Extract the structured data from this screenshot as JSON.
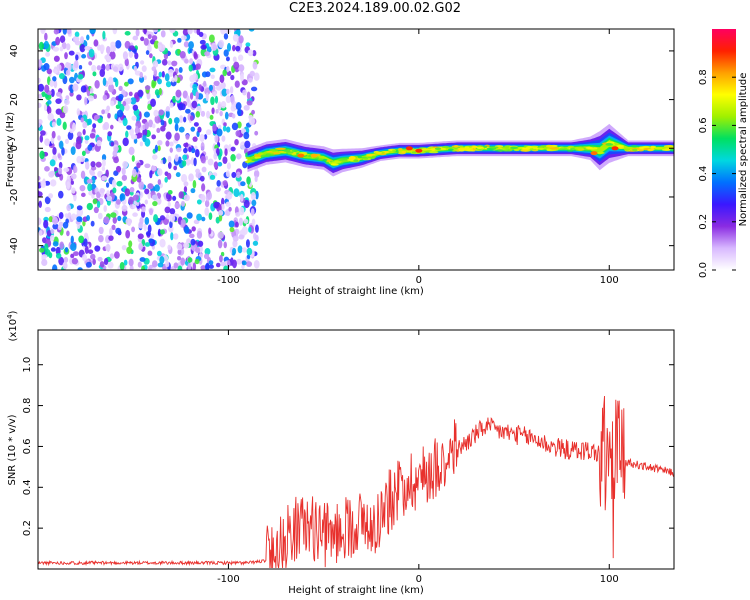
{
  "title": "C2E3.2024.189.00.02.G02",
  "chart_data": [
    {
      "type": "heatmap",
      "xlabel": "Height of straight line (km)",
      "ylabel": "Frequency (Hz)",
      "xlim": [
        -200,
        134
      ],
      "ylim": [
        -50,
        49
      ],
      "x_ticks": [
        -100,
        0,
        100
      ],
      "y_ticks": [
        -40,
        -20,
        0,
        20,
        40
      ],
      "colorbar": {
        "label": "Normalized spectral amplitude",
        "range": [
          0,
          1
        ],
        "ticks": [
          "0.0",
          "0.2",
          "0.4",
          "0.6",
          "0.8"
        ],
        "colors": [
          "#ffffff",
          "#d8b8ff",
          "#8a2be2",
          "#3a18ff",
          "#0070ff",
          "#00d8e0",
          "#00e060",
          "#a0f000",
          "#ffff00",
          "#ffa000",
          "#ff2000",
          "#ff0060"
        ]
      },
      "noise_region": {
        "x_range": [
          -200,
          -85
        ],
        "freq_range": [
          -50,
          49
        ]
      },
      "signal_ridge": {
        "x": [
          -90,
          -80,
          -70,
          -60,
          -50,
          -45,
          -40,
          -30,
          -20,
          -10,
          0,
          20,
          40,
          60,
          80,
          90,
          95,
          100,
          110,
          134
        ],
        "freq": [
          -5,
          -2,
          -1,
          -3,
          -4,
          -6,
          -5,
          -4,
          -2,
          -1,
          -1,
          0,
          0,
          0,
          0,
          0,
          -1,
          2,
          0,
          0
        ],
        "width": [
          6,
          6,
          6,
          6,
          6,
          7,
          6,
          5,
          4,
          4,
          4,
          4,
          4,
          4,
          4,
          6,
          10,
          10,
          4,
          4
        ],
        "peaks": [
          {
            "x": -62,
            "freq": -3,
            "amp": 0.85
          },
          {
            "x": -55,
            "freq": -3,
            "amp": 0.8
          },
          {
            "x": -35,
            "freq": -4,
            "amp": 0.75
          },
          {
            "x": -5,
            "freq": 0,
            "amp": 0.9
          },
          {
            "x": 0,
            "freq": -1,
            "amp": 0.9
          },
          {
            "x": 92,
            "freq": -2,
            "amp": 0.85
          },
          {
            "x": 103,
            "freq": 0,
            "amp": 0.9
          }
        ]
      }
    },
    {
      "type": "line",
      "xlabel": "Height of straight line (km)",
      "ylabel": "SNR (10 * v/v)",
      "y_multiplier": "(x10",
      "y_multiplier_exp": "4",
      "y_multiplier_close": ")",
      "xlim": [
        -200,
        134
      ],
      "ylim": [
        0,
        1.17
      ],
      "x_ticks": [
        -100,
        0,
        100
      ],
      "y_ticks": [
        0.2,
        0.4,
        0.6,
        0.8,
        1.0
      ],
      "color": "#e8302c",
      "series": [
        {
          "x": [
            -200,
            -150,
            -100,
            -90,
            -80,
            -75,
            -70,
            -65,
            -60,
            -55,
            -50,
            -45,
            -40,
            -35,
            -30,
            -25,
            -20,
            -15,
            -10,
            -5,
            0,
            10,
            20,
            30,
            35,
            40,
            50,
            60,
            70,
            80,
            90,
            95,
            100,
            102,
            104,
            106,
            110,
            120,
            134
          ],
          "values": [
            0.03,
            0.03,
            0.03,
            0.03,
            0.04,
            0.08,
            0.14,
            0.18,
            0.2,
            0.18,
            0.15,
            0.15,
            0.18,
            0.2,
            0.22,
            0.18,
            0.25,
            0.32,
            0.38,
            0.42,
            0.42,
            0.5,
            0.58,
            0.66,
            0.7,
            0.68,
            0.66,
            0.64,
            0.6,
            0.58,
            0.58,
            0.56,
            0.55,
            0.35,
            0.7,
            0.5,
            0.52,
            0.5,
            0.47
          ]
        }
      ]
    }
  ]
}
